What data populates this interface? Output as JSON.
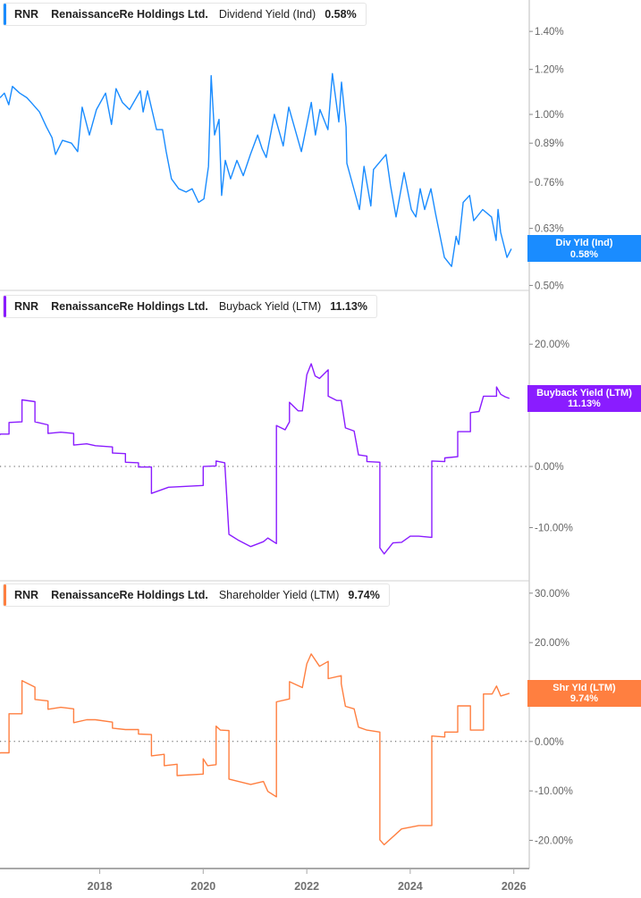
{
  "x_axis": {
    "xlim": [
      "2016-01-28",
      "2026-04-20"
    ],
    "ticks": [
      "2018-01-01",
      "2020-01-01",
      "2022-01-01",
      "2024-01-01",
      "2026-01-01"
    ],
    "tick_labels": [
      "2018",
      "2020",
      "2022",
      "2024",
      "2026"
    ]
  },
  "chart_data": [
    {
      "type": "line",
      "ticker": "RNR",
      "company": "RenaissanceRe Holdings Ltd.",
      "series_name": "Dividend Yield (Ind)",
      "current_value": "0.58%",
      "flag_label": "Div Yld (Ind)",
      "flag_value": "0.58%",
      "last_value": 0.58,
      "color": "#1a8cff",
      "y_scale": "log",
      "ylim": [
        0.49,
        1.59
      ],
      "y_ticks": [
        1.4,
        1.2,
        1.0,
        0.89,
        0.76,
        0.63,
        0.5
      ],
      "y_tick_labels": [
        "1.40%",
        "1.20%",
        "1.00%",
        "0.89%",
        "0.76%",
        "0.63%",
        "0.50%"
      ],
      "zero_line": false,
      "points": [
        [
          "2016-01-28",
          1.07
        ],
        [
          "2016-02-28",
          1.09
        ],
        [
          "2016-03-30",
          1.04
        ],
        [
          "2016-04-25",
          1.12
        ],
        [
          "2016-06-15",
          1.09
        ],
        [
          "2016-08-05",
          1.07
        ],
        [
          "2016-09-18",
          1.04
        ],
        [
          "2016-11-02",
          1.01
        ],
        [
          "2016-12-21",
          0.95
        ],
        [
          "2017-01-29",
          0.91
        ],
        [
          "2017-02-23",
          0.85
        ],
        [
          "2017-04-13",
          0.9
        ],
        [
          "2017-06-15",
          0.89
        ],
        [
          "2017-07-29",
          0.86
        ],
        [
          "2017-08-30",
          1.03
        ],
        [
          "2017-10-20",
          0.92
        ],
        [
          "2017-12-09",
          1.02
        ],
        [
          "2018-02-11",
          1.09
        ],
        [
          "2018-03-25",
          0.96
        ],
        [
          "2018-04-26",
          1.11
        ],
        [
          "2018-06-10",
          1.05
        ],
        [
          "2018-07-30",
          1.02
        ],
        [
          "2018-10-14",
          1.1
        ],
        [
          "2018-11-03",
          1.01
        ],
        [
          "2018-12-04",
          1.1
        ],
        [
          "2019-02-06",
          0.94
        ],
        [
          "2019-03-20",
          0.94
        ],
        [
          "2019-04-15",
          0.86
        ],
        [
          "2019-05-22",
          0.77
        ],
        [
          "2019-07-12",
          0.74
        ],
        [
          "2019-09-02",
          0.73
        ],
        [
          "2019-10-15",
          0.74
        ],
        [
          "2019-11-29",
          0.7
        ],
        [
          "2020-01-06",
          0.71
        ],
        [
          "2020-02-07",
          0.81
        ],
        [
          "2020-02-26",
          1.17
        ],
        [
          "2020-03-21",
          0.92
        ],
        [
          "2020-04-22",
          0.98
        ],
        [
          "2020-05-10",
          0.72
        ],
        [
          "2020-06-05",
          0.83
        ],
        [
          "2020-07-12",
          0.77
        ],
        [
          "2020-08-26",
          0.83
        ],
        [
          "2020-10-10",
          0.78
        ],
        [
          "2020-11-29",
          0.85
        ],
        [
          "2021-01-19",
          0.92
        ],
        [
          "2021-02-20",
          0.87
        ],
        [
          "2021-03-21",
          0.84
        ],
        [
          "2021-05-17",
          1.0
        ],
        [
          "2021-07-19",
          0.88
        ],
        [
          "2021-08-27",
          1.03
        ],
        [
          "2021-11-24",
          0.86
        ],
        [
          "2022-02-02",
          1.05
        ],
        [
          "2022-03-03",
          0.92
        ],
        [
          "2022-04-04",
          1.02
        ],
        [
          "2022-05-30",
          0.94
        ],
        [
          "2022-07-01",
          1.18
        ],
        [
          "2022-08-15",
          0.97
        ],
        [
          "2022-09-03",
          1.14
        ],
        [
          "2022-10-05",
          0.95
        ],
        [
          "2022-10-11",
          0.82
        ],
        [
          "2023-01-08",
          0.68
        ],
        [
          "2023-02-09",
          0.81
        ],
        [
          "2023-03-29",
          0.69
        ],
        [
          "2023-04-17",
          0.8
        ],
        [
          "2023-07-14",
          0.85
        ],
        [
          "2023-08-15",
          0.75
        ],
        [
          "2023-09-23",
          0.66
        ],
        [
          "2023-11-19",
          0.79
        ],
        [
          "2024-01-09",
          0.68
        ],
        [
          "2024-02-10",
          0.66
        ],
        [
          "2024-03-11",
          0.74
        ],
        [
          "2024-04-12",
          0.68
        ],
        [
          "2024-05-26",
          0.74
        ],
        [
          "2024-06-27",
          0.67
        ],
        [
          "2024-08-29",
          0.56
        ],
        [
          "2024-10-19",
          0.54
        ],
        [
          "2024-11-20",
          0.61
        ],
        [
          "2024-12-08",
          0.59
        ],
        [
          "2025-01-09",
          0.7
        ],
        [
          "2025-02-23",
          0.72
        ],
        [
          "2025-03-24",
          0.65
        ],
        [
          "2025-05-26",
          0.68
        ],
        [
          "2025-07-28",
          0.66
        ],
        [
          "2025-08-29",
          0.6
        ],
        [
          "2025-09-12",
          0.68
        ],
        [
          "2025-09-30",
          0.62
        ],
        [
          "2025-11-14",
          0.56
        ],
        [
          "2025-12-15",
          0.58
        ]
      ]
    },
    {
      "type": "line",
      "ticker": "RNR",
      "company": "RenaissanceRe Holdings Ltd.",
      "series_name": "Buyback Yield (LTM)",
      "current_value": "11.13%",
      "flag_label": "Buyback Yield (LTM)",
      "flag_value": "11.13%",
      "last_value": 11.13,
      "color": "#8a1cff",
      "y_scale": "linear",
      "ylim": [
        -18.7,
        28.8
      ],
      "y_ticks": [
        20,
        10,
        0,
        -10
      ],
      "y_tick_labels": [
        "20.00%",
        "10.00%",
        "0.00%",
        "-10.00%"
      ],
      "zero_line": true,
      "points": [
        [
          "2016-01",
          4.7
        ],
        [
          "2016-02",
          5.3
        ],
        [
          "2016-04",
          5.3
        ],
        [
          "2016-04",
          7.2
        ],
        [
          "2016-07",
          7.3
        ],
        [
          "2016-07",
          10.9
        ],
        [
          "2016-10",
          10.6
        ],
        [
          "2016-10",
          7.3
        ],
        [
          "2017-01",
          6.8
        ],
        [
          "2017-01",
          5.4
        ],
        [
          "2017-04",
          5.6
        ],
        [
          "2017-07",
          5.4
        ],
        [
          "2017-07",
          3.5
        ],
        [
          "2017-10",
          3.7
        ],
        [
          "2017-12",
          3.4
        ],
        [
          "2018-04",
          3.2
        ],
        [
          "2018-04",
          2.2
        ],
        [
          "2018-07",
          2.1
        ],
        [
          "2018-07",
          0.7
        ],
        [
          "2018-10",
          0.6
        ],
        [
          "2018-10",
          -0.1
        ],
        [
          "2019-01",
          -0.1
        ],
        [
          "2019-01",
          -4.4
        ],
        [
          "2019-05",
          -3.4
        ],
        [
          "2020-01",
          -3.1
        ],
        [
          "2020-01",
          0.0
        ],
        [
          "2020-04",
          0.1
        ],
        [
          "2020-04",
          0.9
        ],
        [
          "2020-06",
          0.6
        ],
        [
          "2020-07",
          -11.1
        ],
        [
          "2020-09",
          -12.0
        ],
        [
          "2020-12",
          -13.1
        ],
        [
          "2021-03",
          -12.3
        ],
        [
          "2021-04",
          -11.7
        ],
        [
          "2021-06",
          -12.6
        ],
        [
          "2021-06",
          6.7
        ],
        [
          "2021-08",
          6.0
        ],
        [
          "2021-09",
          7.3
        ],
        [
          "2021-09",
          10.5
        ],
        [
          "2021-11",
          9.1
        ],
        [
          "2021-12",
          9.1
        ],
        [
          "2022-01",
          15.0
        ],
        [
          "2022-02",
          16.8
        ],
        [
          "2022-03",
          14.8
        ],
        [
          "2022-04",
          14.4
        ],
        [
          "2022-06",
          15.8
        ],
        [
          "2022-06",
          11.5
        ],
        [
          "2022-08",
          10.8
        ],
        [
          "2022-09",
          10.8
        ],
        [
          "2022-10",
          6.3
        ],
        [
          "2022-12",
          5.8
        ],
        [
          "2023-01",
          1.9
        ],
        [
          "2023-03",
          1.7
        ],
        [
          "2023-03",
          0.8
        ],
        [
          "2023-06",
          0.7
        ],
        [
          "2023-06",
          -13.3
        ],
        [
          "2023-07",
          -14.3
        ],
        [
          "2023-09",
          -12.5
        ],
        [
          "2023-11",
          -12.4
        ],
        [
          "2024-01",
          -11.4
        ],
        [
          "2024-03",
          -11.4
        ],
        [
          "2024-06",
          -11.6
        ],
        [
          "2024-06",
          0.9
        ],
        [
          "2024-09",
          0.8
        ],
        [
          "2024-09",
          1.4
        ],
        [
          "2024-12",
          1.6
        ],
        [
          "2024-12",
          5.7
        ],
        [
          "2025-03",
          5.7
        ],
        [
          "2025-03",
          8.8
        ],
        [
          "2025-05",
          9.0
        ],
        [
          "2025-06",
          11.5
        ],
        [
          "2025-09",
          11.5
        ],
        [
          "2025-09",
          13.0
        ],
        [
          "2025-10",
          11.8
        ],
        [
          "2025-11",
          11.4
        ],
        [
          "2025-12",
          11.13
        ]
      ]
    },
    {
      "type": "line",
      "ticker": "RNR",
      "company": "RenaissanceRe Holdings Ltd.",
      "series_name": "Shareholder Yield (LTM)",
      "current_value": "9.74%",
      "flag_label": "Shr Yld (LTM)",
      "flag_value": "9.74%",
      "last_value": 9.74,
      "color": "#ff7f40",
      "y_scale": "linear",
      "ylim": [
        -25.7,
        32.5
      ],
      "y_ticks": [
        30,
        20,
        10,
        0,
        -10,
        -20
      ],
      "y_tick_labels": [
        "30.00%",
        "20.00%",
        "10.00%",
        "0.00%",
        "-10.00%",
        "-20.00%"
      ],
      "zero_line": true,
      "points": [
        [
          "2016-01",
          -2.7
        ],
        [
          "2016-02",
          -2.3
        ],
        [
          "2016-04",
          -2.3
        ],
        [
          "2016-04",
          5.6
        ],
        [
          "2016-07",
          5.6
        ],
        [
          "2016-07",
          12.3
        ],
        [
          "2016-10",
          11.0
        ],
        [
          "2016-10",
          8.5
        ],
        [
          "2017-01",
          8.2
        ],
        [
          "2017-01",
          6.5
        ],
        [
          "2017-04",
          6.9
        ],
        [
          "2017-07",
          6.6
        ],
        [
          "2017-07",
          3.8
        ],
        [
          "2017-10",
          4.4
        ],
        [
          "2017-12",
          4.4
        ],
        [
          "2018-04",
          3.9
        ],
        [
          "2018-04",
          2.7
        ],
        [
          "2018-07",
          2.4
        ],
        [
          "2018-10",
          2.4
        ],
        [
          "2018-10",
          1.5
        ],
        [
          "2019-01",
          1.4
        ],
        [
          "2019-01",
          -2.9
        ],
        [
          "2019-04",
          -2.6
        ],
        [
          "2019-04",
          -4.9
        ],
        [
          "2019-07",
          -4.6
        ],
        [
          "2019-07",
          -6.9
        ],
        [
          "2020-01",
          -6.6
        ],
        [
          "2020-01",
          -3.5
        ],
        [
          "2020-02",
          -4.9
        ],
        [
          "2020-04",
          -4.7
        ],
        [
          "2020-04",
          3.1
        ],
        [
          "2020-05",
          2.3
        ],
        [
          "2020-07",
          2.2
        ],
        [
          "2020-07",
          -7.6
        ],
        [
          "2020-12",
          -8.7
        ],
        [
          "2021-03",
          -8.1
        ],
        [
          "2021-04",
          -10.1
        ],
        [
          "2021-06",
          -11.2
        ],
        [
          "2021-06",
          8.0
        ],
        [
          "2021-09",
          8.6
        ],
        [
          "2021-09",
          12.1
        ],
        [
          "2021-12",
          10.9
        ],
        [
          "2022-01",
          15.7
        ],
        [
          "2022-02",
          17.7
        ],
        [
          "2022-04",
          15.2
        ],
        [
          "2022-06",
          16.2
        ],
        [
          "2022-06",
          12.7
        ],
        [
          "2022-09",
          13.3
        ],
        [
          "2022-09",
          11.7
        ],
        [
          "2022-10",
          7.1
        ],
        [
          "2022-12",
          6.6
        ],
        [
          "2023-01",
          2.9
        ],
        [
          "2023-03",
          2.3
        ],
        [
          "2023-06",
          1.9
        ],
        [
          "2023-06",
          -19.9
        ],
        [
          "2023-07",
          -20.9
        ],
        [
          "2023-11",
          -17.7
        ],
        [
          "2024-03",
          -17.0
        ],
        [
          "2024-06",
          -17.0
        ],
        [
          "2024-06",
          1.1
        ],
        [
          "2024-09",
          0.9
        ],
        [
          "2024-09",
          1.9
        ],
        [
          "2024-12",
          1.9
        ],
        [
          "2024-12",
          7.2
        ],
        [
          "2025-03",
          7.2
        ],
        [
          "2025-03",
          2.3
        ],
        [
          "2025-06",
          2.3
        ],
        [
          "2025-06",
          9.6
        ],
        [
          "2025-08",
          9.6
        ],
        [
          "2025-09",
          11.2
        ],
        [
          "2025-10",
          9.2
        ],
        [
          "2025-12",
          9.74
        ]
      ]
    }
  ]
}
